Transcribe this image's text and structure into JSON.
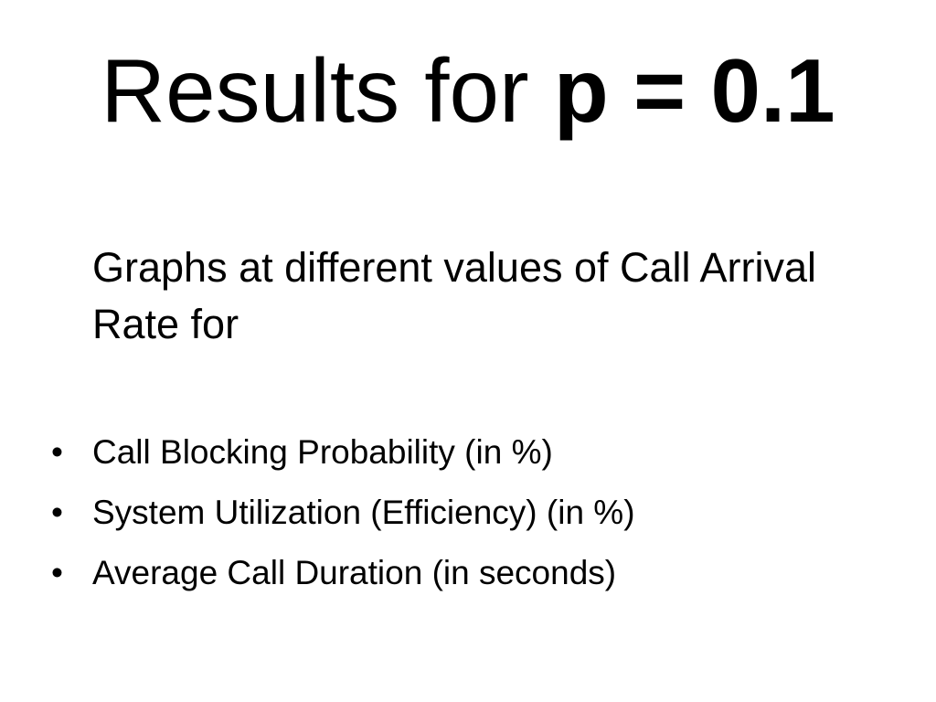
{
  "slide": {
    "title": {
      "prefix": "Results for ",
      "emphasis": "p = 0.1"
    },
    "intro": "Graphs at different values of Call Arrival Rate for",
    "bullet_glyph": "•",
    "bullets": [
      "Call Blocking Probability (in %)",
      "System Utilization (Efficiency) (in %)",
      "Average Call Duration (in seconds)"
    ]
  }
}
